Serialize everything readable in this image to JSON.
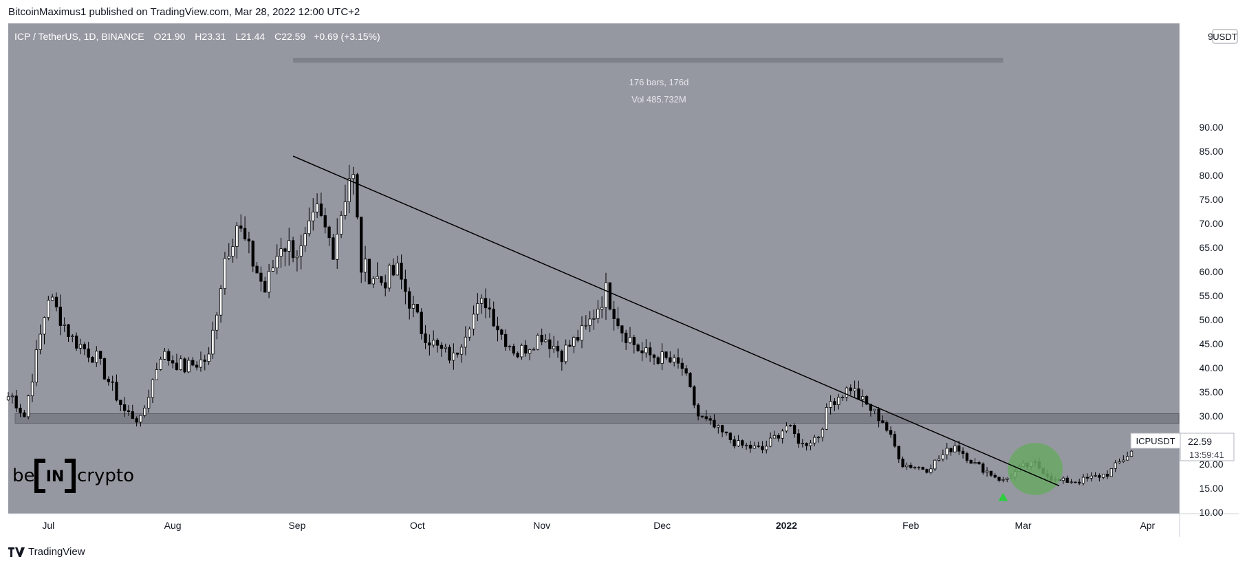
{
  "attribution": "BitcoinMaximus1 published on TradingView.com, Mar 28, 2022 12:00 UTC+2",
  "footer": {
    "brand": "TradingView"
  },
  "header": {
    "symbol": "ICP / TetherUS, 1D, BINANCE",
    "o_label": "O",
    "o_value": "21.90",
    "h_label": "H",
    "h_value": "23.31",
    "l_label": "L",
    "l_value": "21.44",
    "c_label": "C",
    "c_value": "22.59",
    "change": "+0.69 (+3.15%)"
  },
  "currency_badge": "USDT",
  "range_measure": {
    "bars": "176 bars, 176d",
    "volume": "Vol 485.732M"
  },
  "price_label": {
    "symbol": "ICPUSDT",
    "price": "22.59",
    "countdown": "13:59:41"
  },
  "watermark": {
    "be": "be",
    "in": "IN",
    "crypto": "crypto"
  },
  "colors": {
    "plot_bg": "#9598a1",
    "up_candle": "#ffffff",
    "down_candle": "#000000",
    "wick": "#000000",
    "trendline": "#000000",
    "support_zone": "#7b7e86",
    "range_bar": "#7e8189",
    "highlight_circle": "#6aa865",
    "arrow": "#2ecc40",
    "axis_bg": "#ffffff",
    "axis_text": "#131722"
  },
  "chart_data": {
    "type": "candlestick",
    "symbol": "ICPUSDT",
    "interval": "1D",
    "yaxis": {
      "ticks": [
        10,
        15,
        20,
        25,
        30,
        35,
        40,
        45,
        50,
        55,
        60,
        65,
        70,
        75,
        80,
        85,
        90
      ],
      "tick_labels": [
        "10.00",
        "15.00",
        "20.00",
        "25.00",
        "30.00",
        "35.00",
        "40.00",
        "45.00",
        "50.00",
        "55.00",
        "60.00",
        "65.00",
        "70.00",
        "75.00",
        "80.00",
        "85.00",
        "90.00"
      ],
      "ylim": [
        10,
        95
      ]
    },
    "xaxis": {
      "labels": [
        {
          "label": "Jul",
          "date": "2021-07-01"
        },
        {
          "label": "Aug",
          "date": "2021-08-01"
        },
        {
          "label": "Sep",
          "date": "2021-09-01"
        },
        {
          "label": "Oct",
          "date": "2021-10-01"
        },
        {
          "label": "Nov",
          "date": "2021-11-01"
        },
        {
          "label": "Dec",
          "date": "2021-12-01"
        },
        {
          "label": "2022",
          "date": "2022-01-01"
        },
        {
          "label": "Feb",
          "date": "2022-02-01"
        },
        {
          "label": "Mar",
          "date": "2022-03-01"
        },
        {
          "label": "Apr",
          "date": "2022-04-01"
        }
      ],
      "range": [
        "2021-06-21",
        "2022-04-09"
      ]
    },
    "annotations": {
      "trendline": {
        "from": {
          "date": "2021-08-31",
          "price": 84.0
        },
        "to": {
          "date": "2022-03-10",
          "price": 15.5
        }
      },
      "support_zone": {
        "low": 28.5,
        "high": 30.5
      },
      "measure_range": {
        "from": "2021-08-31",
        "to": "2022-02-24"
      },
      "breakout_circle": {
        "date": "2022-03-04",
        "price": 19.0
      },
      "arrow_up": {
        "date": "2022-02-24",
        "price": 13.2
      }
    },
    "keypoints": [
      {
        "date": "2021-06-22",
        "price": 34
      },
      {
        "date": "2021-06-25",
        "price": 30
      },
      {
        "date": "2021-07-01",
        "price": 55
      },
      {
        "date": "2021-07-07",
        "price": 46
      },
      {
        "date": "2021-07-13",
        "price": 42
      },
      {
        "date": "2021-07-20",
        "price": 31
      },
      {
        "date": "2021-07-24",
        "price": 29
      },
      {
        "date": "2021-07-29",
        "price": 43
      },
      {
        "date": "2021-08-04",
        "price": 40
      },
      {
        "date": "2021-08-10",
        "price": 42
      },
      {
        "date": "2021-08-14",
        "price": 63
      },
      {
        "date": "2021-08-17",
        "price": 70
      },
      {
        "date": "2021-08-21",
        "price": 62
      },
      {
        "date": "2021-08-24",
        "price": 56
      },
      {
        "date": "2021-08-28",
        "price": 66
      },
      {
        "date": "2021-09-02",
        "price": 64
      },
      {
        "date": "2021-09-06",
        "price": 72
      },
      {
        "date": "2021-09-10",
        "price": 65
      },
      {
        "date": "2021-09-14",
        "price": 80
      },
      {
        "date": "2021-09-15",
        "price": 79
      },
      {
        "date": "2021-09-17",
        "price": 61
      },
      {
        "date": "2021-09-22",
        "price": 58
      },
      {
        "date": "2021-09-26",
        "price": 60
      },
      {
        "date": "2021-10-02",
        "price": 48
      },
      {
        "date": "2021-10-06",
        "price": 44
      },
      {
        "date": "2021-10-10",
        "price": 42
      },
      {
        "date": "2021-10-14",
        "price": 50
      },
      {
        "date": "2021-10-18",
        "price": 54
      },
      {
        "date": "2021-10-22",
        "price": 47
      },
      {
        "date": "2021-10-26",
        "price": 43
      },
      {
        "date": "2021-11-01",
        "price": 47
      },
      {
        "date": "2021-11-06",
        "price": 43
      },
      {
        "date": "2021-11-12",
        "price": 48
      },
      {
        "date": "2021-11-17",
        "price": 56
      },
      {
        "date": "2021-11-21",
        "price": 48
      },
      {
        "date": "2021-11-26",
        "price": 43
      },
      {
        "date": "2021-12-01",
        "price": 42
      },
      {
        "date": "2021-12-06",
        "price": 40
      },
      {
        "date": "2021-12-10",
        "price": 30
      },
      {
        "date": "2021-12-15",
        "price": 27
      },
      {
        "date": "2021-12-20",
        "price": 24
      },
      {
        "date": "2021-12-26",
        "price": 23
      },
      {
        "date": "2022-01-01",
        "price": 28
      },
      {
        "date": "2022-01-05",
        "price": 24
      },
      {
        "date": "2022-01-09",
        "price": 26
      },
      {
        "date": "2022-01-12",
        "price": 33
      },
      {
        "date": "2022-01-17",
        "price": 36
      },
      {
        "date": "2022-01-20",
        "price": 33
      },
      {
        "date": "2022-01-25",
        "price": 29
      },
      {
        "date": "2022-01-30",
        "price": 20
      },
      {
        "date": "2022-02-05",
        "price": 19
      },
      {
        "date": "2022-02-12",
        "price": 24
      },
      {
        "date": "2022-02-17",
        "price": 20
      },
      {
        "date": "2022-02-24",
        "price": 16.5
      },
      {
        "date": "2022-03-01",
        "price": 19.5
      },
      {
        "date": "2022-03-04",
        "price": 20
      },
      {
        "date": "2022-03-09",
        "price": 16.5
      },
      {
        "date": "2022-03-15",
        "price": 16.5
      },
      {
        "date": "2022-03-22",
        "price": 18
      },
      {
        "date": "2022-03-27",
        "price": 21.9
      },
      {
        "date": "2022-03-28",
        "price": 22.59
      }
    ]
  }
}
